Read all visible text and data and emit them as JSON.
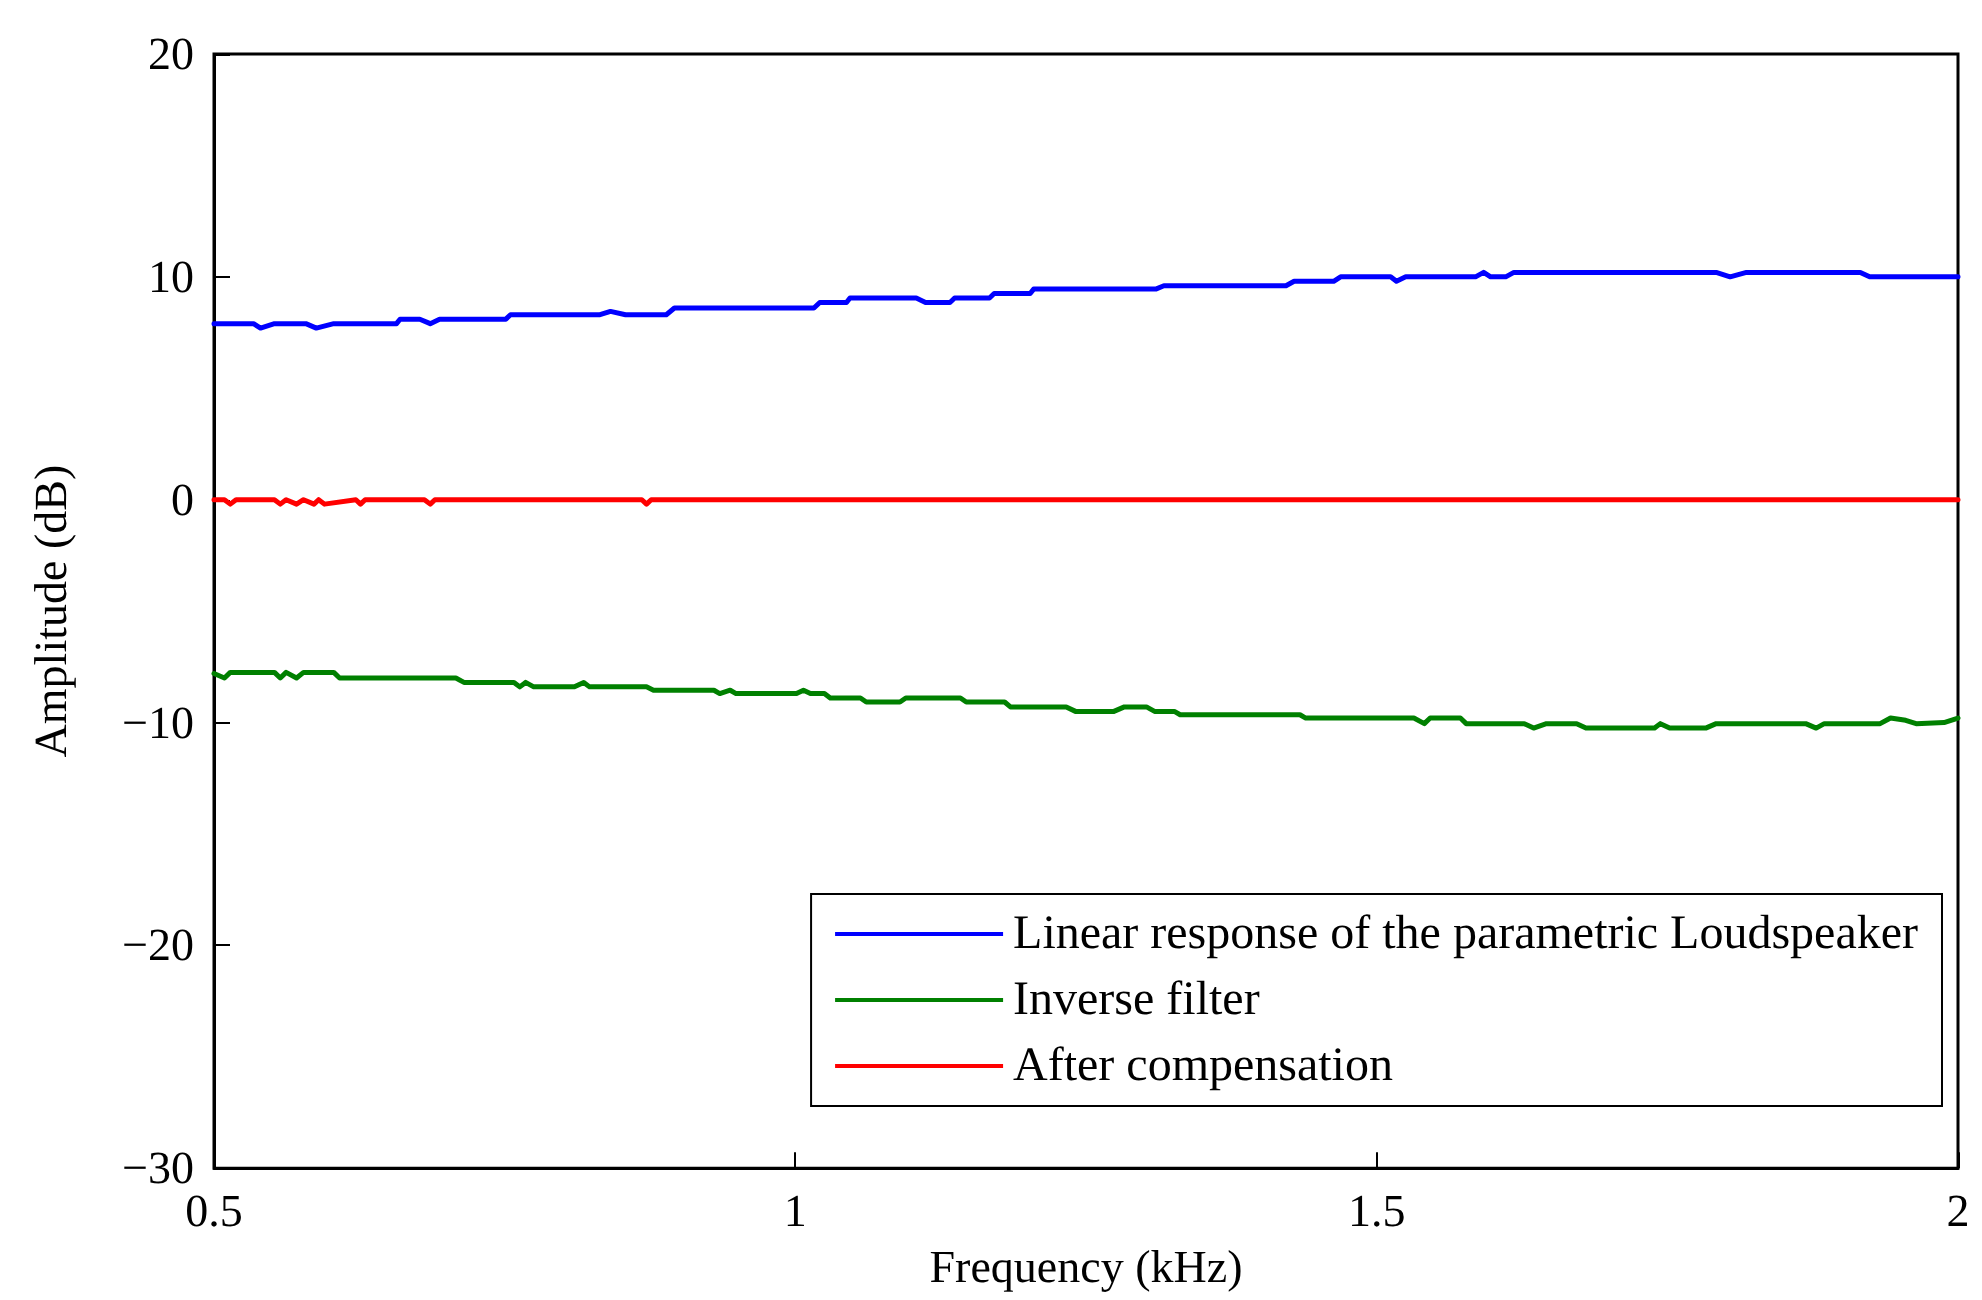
{
  "chart_data": {
    "type": "line",
    "xlabel": "Frequency (kHz)",
    "ylabel": "Amplitude (dB)",
    "xlim": [
      0.5,
      2
    ],
    "xticks": [
      0.5,
      1,
      1.5,
      2
    ],
    "ylim": [
      -30,
      20
    ],
    "yticks": [
      {
        "value": -30,
        "label": "−30"
      },
      {
        "value": -20,
        "label": "−20"
      },
      {
        "value": -10,
        "label": "−10"
      },
      0,
      10,
      20
    ],
    "grid": false,
    "legend": "bottom right",
    "marker": "none",
    "line_style": "solid",
    "series": [
      {
        "name": "Linear response of the parametric Loudspeaker",
        "color": "#0000ff",
        "x": [
          0.5,
          0.534,
          0.54,
          0.552,
          0.579,
          0.588,
          0.603,
          0.657,
          0.66,
          0.677,
          0.686,
          0.694,
          0.751,
          0.755,
          0.832,
          0.841,
          0.854,
          0.889,
          0.896,
          1.016,
          1.021,
          1.044,
          1.047,
          1.104,
          1.112,
          1.133,
          1.137,
          1.167,
          1.171,
          1.202,
          1.205,
          1.31,
          1.317,
          1.422,
          1.429,
          1.463,
          1.469,
          1.512,
          1.517,
          1.525,
          1.585,
          1.592,
          1.598,
          1.611,
          1.618,
          1.792,
          1.804,
          1.818,
          1.916,
          1.924,
          2.0
        ],
        "values": [
          7.9,
          7.9,
          7.7,
          7.9,
          7.9,
          7.7,
          7.9,
          7.9,
          8.1,
          8.1,
          7.9,
          8.1,
          8.1,
          8.3,
          8.3,
          8.45,
          8.3,
          8.3,
          8.6,
          8.6,
          8.85,
          8.85,
          9.05,
          9.05,
          8.85,
          8.85,
          9.05,
          9.05,
          9.25,
          9.25,
          9.45,
          9.45,
          9.6,
          9.6,
          9.8,
          9.8,
          10.0,
          10.0,
          9.8,
          10.0,
          10.0,
          10.2,
          10.0,
          10.0,
          10.2,
          10.2,
          10.0,
          10.2,
          10.2,
          10.0,
          10.0
        ]
      },
      {
        "name": "Inverse filter",
        "color": "#008000",
        "x": [
          0.5,
          0.509,
          0.514,
          0.552,
          0.557,
          0.562,
          0.571,
          0.577,
          0.603,
          0.608,
          0.708,
          0.715,
          0.758,
          0.763,
          0.768,
          0.775,
          0.81,
          0.818,
          0.823,
          0.872,
          0.878,
          0.93,
          0.935,
          0.944,
          0.949,
          1.001,
          1.007,
          1.013,
          1.025,
          1.03,
          1.056,
          1.061,
          1.09,
          1.095,
          1.142,
          1.147,
          1.18,
          1.185,
          1.233,
          1.241,
          1.274,
          1.283,
          1.302,
          1.309,
          1.326,
          1.331,
          1.434,
          1.439,
          1.532,
          1.541,
          1.546,
          1.572,
          1.577,
          1.627,
          1.635,
          1.646,
          1.672,
          1.68,
          1.739,
          1.744,
          1.752,
          1.783,
          1.792,
          1.869,
          1.878,
          1.885,
          1.933,
          1.942,
          1.955,
          1.964,
          1.988,
          2.0
        ],
        "values": [
          -7.8,
          -8.0,
          -7.75,
          -7.75,
          -8.0,
          -7.75,
          -8.0,
          -7.75,
          -7.75,
          -8.0,
          -8.0,
          -8.2,
          -8.2,
          -8.4,
          -8.2,
          -8.4,
          -8.4,
          -8.2,
          -8.4,
          -8.4,
          -8.55,
          -8.55,
          -8.7,
          -8.55,
          -8.7,
          -8.7,
          -8.55,
          -8.7,
          -8.7,
          -8.9,
          -8.9,
          -9.08,
          -9.08,
          -8.9,
          -8.9,
          -9.08,
          -9.08,
          -9.3,
          -9.3,
          -9.5,
          -9.5,
          -9.3,
          -9.3,
          -9.5,
          -9.5,
          -9.65,
          -9.65,
          -9.8,
          -9.8,
          -10.05,
          -9.8,
          -9.8,
          -10.05,
          -10.05,
          -10.25,
          -10.05,
          -10.05,
          -10.25,
          -10.25,
          -10.05,
          -10.25,
          -10.25,
          -10.05,
          -10.05,
          -10.25,
          -10.05,
          -10.05,
          -9.8,
          -9.9,
          -10.05,
          -10.0,
          -9.8
        ]
      },
      {
        "name": "After compensation",
        "color": "#ff0000",
        "x": [
          0.5,
          0.509,
          0.514,
          0.519,
          0.552,
          0.557,
          0.562,
          0.571,
          0.577,
          0.586,
          0.59,
          0.595,
          0.622,
          0.626,
          0.63,
          0.681,
          0.686,
          0.69,
          0.868,
          0.872,
          0.876,
          2.0
        ],
        "values": [
          0,
          0,
          -0.2,
          0,
          0,
          -0.2,
          0,
          -0.2,
          0,
          -0.2,
          0,
          -0.2,
          0,
          -0.2,
          0,
          0,
          -0.2,
          0,
          0,
          -0.2,
          0,
          0
        ]
      }
    ]
  }
}
